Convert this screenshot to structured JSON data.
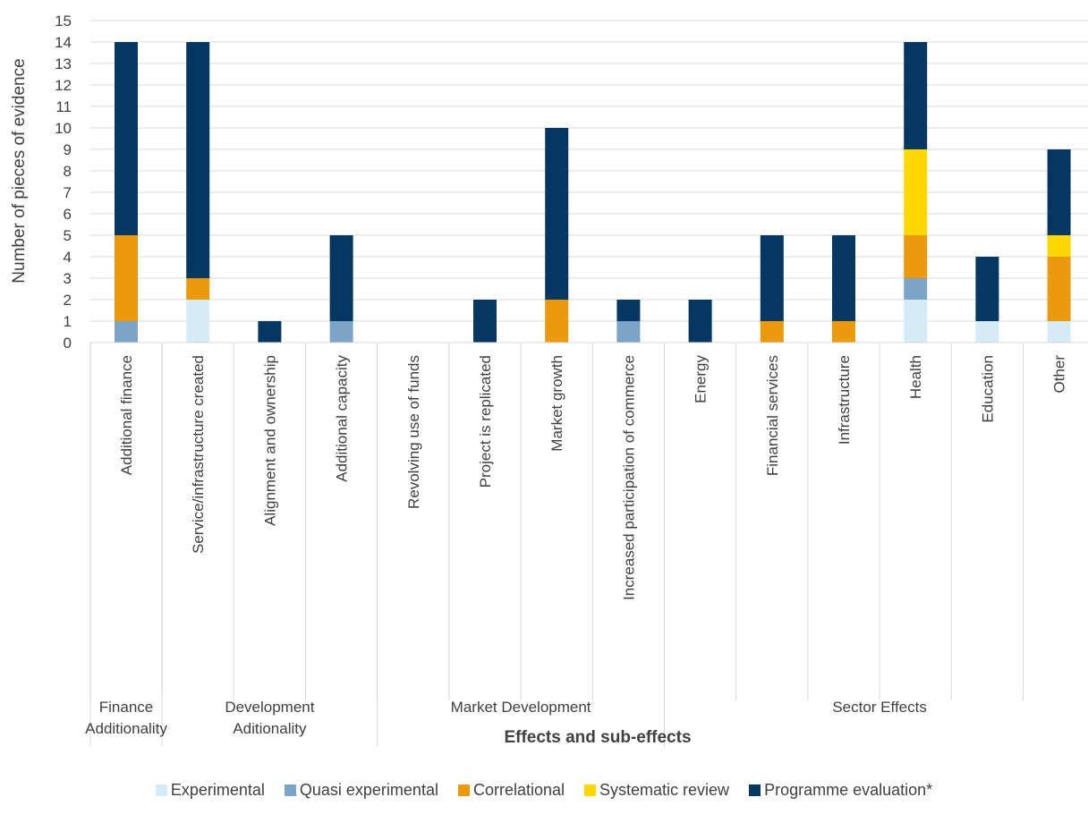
{
  "chart_data": {
    "type": "bar",
    "stacked": true,
    "ylabel": "Number of pieces of evidence",
    "xlabel": "Effects and sub-effects",
    "ylim": [
      0,
      15
    ],
    "y_ticks": [
      0,
      1,
      2,
      3,
      4,
      5,
      6,
      7,
      8,
      9,
      10,
      11,
      12,
      13,
      14,
      15
    ],
    "grid": true,
    "legend_position": "bottom",
    "categories": [
      "Additional finance",
      "Service/infrastructure created",
      "Alignment and ownership",
      "Additional capacity",
      "Revolving use of funds",
      "Project is replicated",
      "Market growth",
      "Increased participation of commerce",
      "Energy",
      "Financial services",
      "Infrastructure",
      "Health",
      "Education",
      "Other"
    ],
    "groups": [
      {
        "label_lines": [
          "Finance",
          "Additionality"
        ],
        "start": 0,
        "end": 0
      },
      {
        "label_lines": [
          "Development",
          "Aditionality"
        ],
        "start": 1,
        "end": 3
      },
      {
        "label_lines": [
          "Market Development"
        ],
        "start": 4,
        "end": 7
      },
      {
        "label_lines": [
          "Sector Effects"
        ],
        "start": 8,
        "end": 13
      }
    ],
    "series": [
      {
        "name": "Experimental",
        "color": "#d6ebf8",
        "values": [
          0,
          2,
          0,
          0,
          0,
          0,
          0,
          0,
          0,
          0,
          0,
          2,
          1,
          1
        ]
      },
      {
        "name": "Quasi experimental",
        "color": "#7ba4c7",
        "values": [
          1,
          0,
          0,
          1,
          0,
          0,
          0,
          1,
          0,
          0,
          0,
          1,
          0,
          0
        ]
      },
      {
        "name": "Correlational",
        "color": "#ec9a0d",
        "values": [
          4,
          1,
          0,
          0,
          0,
          0,
          2,
          0,
          0,
          1,
          1,
          2,
          0,
          3
        ]
      },
      {
        "name": "Systematic review",
        "color": "#ffd700",
        "values": [
          0,
          0,
          0,
          0,
          0,
          0,
          0,
          0,
          0,
          0,
          0,
          4,
          0,
          1
        ]
      },
      {
        "name": "Programme evaluation*",
        "color": "#063763",
        "values": [
          9,
          11,
          1,
          4,
          0,
          2,
          8,
          1,
          2,
          4,
          4,
          5,
          3,
          4
        ]
      }
    ]
  }
}
